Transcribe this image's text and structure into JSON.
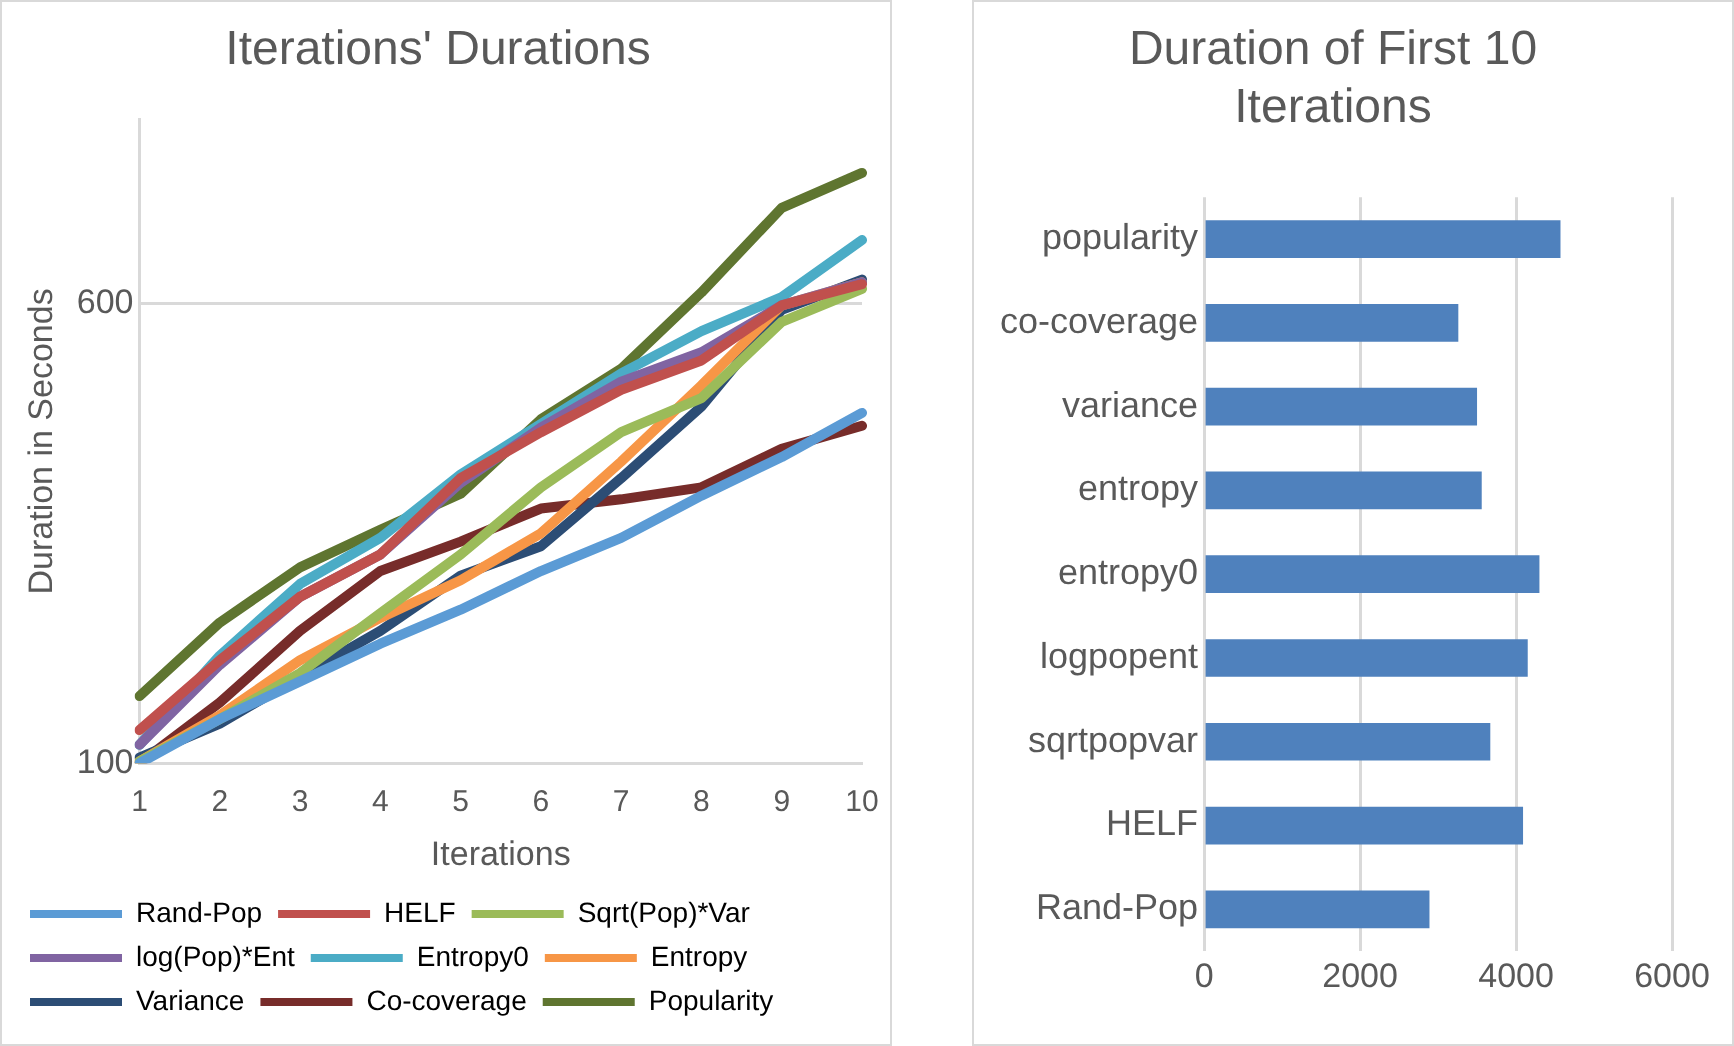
{
  "chart_data": [
    {
      "type": "line",
      "title": "Iterations' Durations",
      "xlabel": "Iterations",
      "ylabel": "Duration in Seconds",
      "categories": [
        "1",
        "2",
        "3",
        "4",
        "5",
        "6",
        "7",
        "8",
        "9",
        "10"
      ],
      "ylim": [
        100,
        800
      ],
      "yticks": [
        100,
        600
      ],
      "grid": "y",
      "legend": "bottom",
      "marker": "none",
      "line_style": "solid",
      "series": [
        {
          "name": "Rand-Pop",
          "color": "#5b9bd5",
          "values": [
            100,
            148,
            189,
            230,
            267,
            309,
            345,
            391,
            433,
            481
          ]
        },
        {
          "name": "HELF",
          "color": "#c0504d",
          "values": [
            136,
            212,
            281,
            327,
            410,
            460,
            506,
            538,
            598,
            621
          ]
        },
        {
          "name": "Sqrt(Pop)*Var",
          "color": "#9bbb59",
          "values": [
            102,
            148,
            198,
            263,
            327,
            400,
            460,
            497,
            580,
            616
          ]
        },
        {
          "name": "log(Pop)*Ent",
          "color": "#8064a2",
          "values": [
            120,
            207,
            281,
            327,
            405,
            465,
            515,
            547,
            598,
            623
          ]
        },
        {
          "name": "Entropy0",
          "color": "#4bacc6",
          "values": [
            120,
            217,
            295,
            345,
            414,
            469,
            524,
            570,
            607,
            669
          ]
        },
        {
          "name": "Entropy",
          "color": "#f79646",
          "values": [
            102,
            152,
            212,
            258,
            299,
            350,
            428,
            511,
            598,
            623
          ]
        },
        {
          "name": "Variance",
          "color": "#2c4d75",
          "values": [
            106,
            143,
            194,
            244,
            304,
            336,
            410,
            488,
            593,
            626
          ]
        },
        {
          "name": "Co-coverage",
          "color": "#772c2a",
          "values": [
            100,
            166,
            244,
            309,
            341,
            377,
            387,
            400,
            442,
            467
          ]
        },
        {
          "name": "Popularity",
          "color": "#5f7530",
          "values": [
            173,
            253,
            313,
            354,
            393,
            474,
            529,
            612,
            704,
            742
          ]
        }
      ]
    },
    {
      "type": "bar",
      "orientation": "horizontal",
      "title": "Duration of First 10 Iterations",
      "categories": [
        "popularity",
        "co-coverage",
        "variance",
        "entropy",
        "entropy0",
        "logpopent",
        "sqrtpopvar",
        "HELF",
        "Rand-Pop"
      ],
      "values": [
        4570,
        3260,
        3500,
        3560,
        4300,
        4150,
        3670,
        4090,
        2890
      ],
      "color": "#4f81bd",
      "xlim": [
        0,
        6000
      ],
      "xticks": [
        0,
        2000,
        4000,
        6000
      ],
      "grid": "x"
    }
  ]
}
